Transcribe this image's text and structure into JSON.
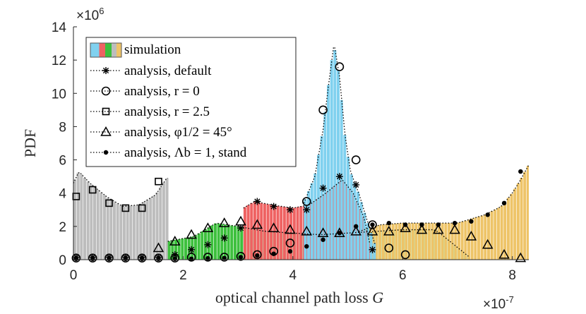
{
  "chart_data": {
    "type": "bar",
    "title": "",
    "xlabel": "optical channel path loss",
    "xlabel_var": "G",
    "ylabel": "PDF",
    "x_exponent_label": "×10",
    "x_exponent_power": "-7",
    "y_exponent_label": "×10",
    "y_exponent_power": "6",
    "xlim": [
      0,
      8.3
    ],
    "ylim": [
      0,
      14
    ],
    "xticks": [
      0,
      2,
      4,
      6,
      8
    ],
    "xtick_labels": [
      "0",
      "2",
      "4",
      "6",
      "8"
    ],
    "yticks": [
      0,
      2,
      4,
      6,
      8,
      10,
      12,
      14
    ],
    "ytick_labels": [
      "0",
      "2",
      "4",
      "6",
      "8",
      "10",
      "12",
      "14"
    ],
    "bin_width": 0.06,
    "legend": {
      "position": "top-left",
      "entries": [
        {
          "name": "simulation",
          "text": "simulation",
          "marker": "patch"
        },
        {
          "name": "analysis-default",
          "text": "analysis, default",
          "marker": "asterisk"
        },
        {
          "name": "analysis-r0",
          "text": "analysis, r = 0",
          "marker": "circle"
        },
        {
          "name": "analysis-r2-5",
          "text": "analysis, r = 2.5",
          "marker": "square"
        },
        {
          "name": "analysis-phi45",
          "text": "analysis, φ1/2 = 45°",
          "marker": "triangle"
        },
        {
          "name": "analysis-stand",
          "text": "analysis, Λb = 1, stand",
          "marker": "dot"
        }
      ]
    },
    "histograms": [
      {
        "name": "gray",
        "color": "#bdbdbd",
        "x_start": 0.0,
        "x_end": 1.72,
        "curve": [
          [
            0,
            4.6
          ],
          [
            0.1,
            5.3
          ],
          [
            0.3,
            4.6
          ],
          [
            0.6,
            3.8
          ],
          [
            0.9,
            3.2
          ],
          [
            1.2,
            3.3
          ],
          [
            1.5,
            3.9
          ],
          [
            1.7,
            4.9
          ]
        ]
      },
      {
        "name": "green",
        "color": "#3dc03d",
        "x_start": 1.72,
        "x_end": 7.2,
        "curve": [
          [
            1.72,
            1.1
          ],
          [
            2.2,
            1.4
          ],
          [
            2.6,
            2.2
          ],
          [
            3.0,
            2.0
          ],
          [
            3.5,
            1.7
          ],
          [
            4.0,
            1.6
          ],
          [
            4.5,
            1.5
          ],
          [
            5.0,
            1.6
          ],
          [
            5.5,
            1.7
          ],
          [
            6.0,
            1.8
          ],
          [
            6.6,
            1.8
          ],
          [
            7.2,
            0.2
          ]
        ]
      },
      {
        "name": "yellow",
        "color": "#eec468",
        "x_start": 5.2,
        "x_end": 8.3,
        "curve": [
          [
            5.2,
            1.7
          ],
          [
            5.6,
            2.1
          ],
          [
            6.0,
            2.2
          ],
          [
            6.5,
            2.2
          ],
          [
            7.0,
            2.2
          ],
          [
            7.5,
            2.7
          ],
          [
            7.8,
            3.2
          ],
          [
            8.0,
            4.0
          ],
          [
            8.15,
            4.8
          ],
          [
            8.3,
            5.7
          ]
        ]
      },
      {
        "name": "red",
        "color": "#ef6262",
        "x_start": 3.1,
        "x_end": 5.4,
        "curve": [
          [
            3.1,
            3.1
          ],
          [
            3.3,
            3.5
          ],
          [
            3.6,
            3.3
          ],
          [
            4.0,
            3.1
          ],
          [
            4.3,
            3.3
          ],
          [
            4.6,
            4.0
          ],
          [
            4.9,
            4.8
          ],
          [
            5.1,
            4.0
          ],
          [
            5.3,
            2.5
          ],
          [
            5.4,
            1.0
          ]
        ]
      },
      {
        "name": "blue",
        "color": "#80d1ef",
        "x_start": 4.2,
        "x_end": 5.5,
        "curve": [
          [
            4.2,
            3.4
          ],
          [
            4.4,
            5.0
          ],
          [
            4.55,
            7.8
          ],
          [
            4.65,
            10.5
          ],
          [
            4.75,
            13.0
          ],
          [
            4.85,
            11.0
          ],
          [
            4.95,
            7.5
          ],
          [
            5.05,
            5.3
          ],
          [
            5.2,
            4.0
          ],
          [
            5.35,
            2.4
          ],
          [
            5.5,
            0.9
          ]
        ]
      }
    ],
    "series": [
      {
        "name": "analysis, default",
        "marker": "asterisk",
        "x": [
          0.05,
          0.35,
          0.65,
          0.95,
          1.25,
          1.55,
          1.85,
          2.15,
          2.45,
          2.75,
          3.05,
          3.35,
          3.65,
          3.95,
          4.25,
          4.55,
          4.85,
          5.15,
          5.45
        ],
        "y": [
          0.15,
          0.15,
          0.15,
          0.15,
          0.15,
          0.15,
          0.3,
          0.6,
          0.9,
          1.3,
          1.9,
          3.5,
          3.2,
          3.0,
          3.0,
          4.3,
          5.0,
          4.5,
          0.6
        ]
      },
      {
        "name": "analysis, r = 0",
        "marker": "circle",
        "x": [
          0.05,
          0.35,
          0.65,
          0.95,
          1.25,
          1.55,
          1.85,
          2.15,
          2.45,
          2.75,
          3.05,
          3.35,
          3.65,
          3.95,
          4.25,
          4.55,
          4.85,
          5.15,
          5.45,
          5.75,
          6.05
        ],
        "y": [
          0.1,
          0.1,
          0.1,
          0.1,
          0.1,
          0.1,
          0.1,
          0.15,
          0.15,
          0.15,
          0.2,
          0.3,
          0.5,
          1.0,
          3.5,
          9.0,
          11.6,
          6.0,
          2.1,
          0.7,
          0.3
        ]
      },
      {
        "name": "analysis, r = 2.5",
        "marker": "square",
        "x": [
          0.05,
          0.35,
          0.65,
          0.95,
          1.25,
          1.55
        ],
        "y": [
          3.8,
          4.2,
          3.4,
          3.1,
          3.1,
          4.7
        ]
      },
      {
        "name": "analysis, φ1/2 = 45°",
        "marker": "triangle",
        "x": [
          1.55,
          1.85,
          2.15,
          2.45,
          2.75,
          3.05,
          3.35,
          3.65,
          3.95,
          4.25,
          4.55,
          4.85,
          5.15,
          5.45,
          5.75,
          6.05,
          6.35,
          6.65,
          6.95,
          7.25,
          7.55,
          7.85,
          8.15
        ],
        "y": [
          0.7,
          1.1,
          1.5,
          1.9,
          2.2,
          2.3,
          2.1,
          1.9,
          1.8,
          1.7,
          1.6,
          1.6,
          1.7,
          1.7,
          1.7,
          1.9,
          1.8,
          1.8,
          1.8,
          1.4,
          0.9,
          0.3,
          0.1
        ]
      },
      {
        "name": "analysis, Λb = 1, stand",
        "marker": "dot",
        "x": [
          0.05,
          0.35,
          0.65,
          0.95,
          1.25,
          1.55,
          1.85,
          2.15,
          2.45,
          2.75,
          3.05,
          3.35,
          3.65,
          3.95,
          4.25,
          4.55,
          4.85,
          5.15,
          5.45,
          5.75,
          6.05,
          6.35,
          6.65,
          6.95,
          7.25,
          7.55,
          7.85,
          8.15
        ],
        "y": [
          0.05,
          0.05,
          0.05,
          0.05,
          0.05,
          0.05,
          0.05,
          0.05,
          0.08,
          0.1,
          0.15,
          0.25,
          0.35,
          0.5,
          0.8,
          1.2,
          1.6,
          2.0,
          2.1,
          2.2,
          2.1,
          2.1,
          2.1,
          2.2,
          2.3,
          2.7,
          3.4,
          5.3
        ]
      }
    ]
  }
}
